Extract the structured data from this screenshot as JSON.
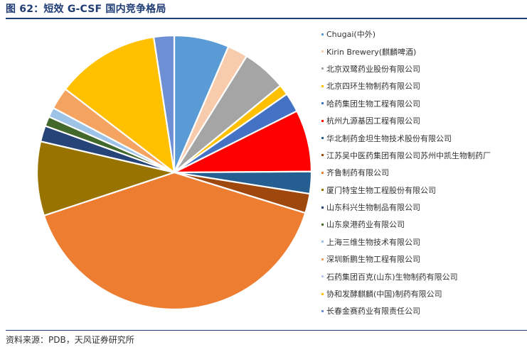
{
  "title": "图 62：短效 G-CSF 国内竞争格局",
  "source": "资料来源：PDB，天风证券研究所",
  "chart_data": {
    "type": "pie",
    "title": "",
    "legend_position": "right",
    "start_angle_deg": 0,
    "direction": "clockwise",
    "slices": [
      {
        "label": "Chugai(中外)",
        "value": 6.2,
        "color": "#5b9bd5"
      },
      {
        "label": "Kirin Brewery(麒麟啤酒)",
        "value": 2.3,
        "color": "#f8cbad"
      },
      {
        "label": "北京双鹭药业股份有限公司",
        "value": 5.0,
        "color": "#a5a5a5"
      },
      {
        "label": "北京四环生物制药有限公司",
        "value": 1.2,
        "color": "#ffc000"
      },
      {
        "label": "哈药集团生物工程有限公司",
        "value": 2.2,
        "color": "#4472c4"
      },
      {
        "label": "杭州九源基因工程有限公司",
        "value": 7.0,
        "color": "#ff0000"
      },
      {
        "label": "华北制药金坦生物技术股份有限公司",
        "value": 2.5,
        "color": "#255e91"
      },
      {
        "label": "江苏吴中医药集团有限公司苏州中凯生物制药厂",
        "value": 2.2,
        "color": "#9e480e"
      },
      {
        "label": "齐鲁制药有限公司",
        "value": 38.5,
        "color": "#ed7d31"
      },
      {
        "label": "厦门特宝生物工程股份有限公司",
        "value": 8.4,
        "color": "#997300"
      },
      {
        "label": "山东科兴生物制品有限公司",
        "value": 1.8,
        "color": "#264478"
      },
      {
        "label": "山东泉港药业有限公司",
        "value": 1.1,
        "color": "#43682b"
      },
      {
        "label": "上海三维生物技术有限公司",
        "value": 1.1,
        "color": "#9dc3e6"
      },
      {
        "label": "深圳新鹏生物工程有限公司",
        "value": 2.5,
        "color": "#f4a460"
      },
      {
        "label": "石药集团百克(山东)生物制药有限公司",
        "value": 0.0,
        "color": "#b4c7e7"
      },
      {
        "label": "协和发酵麒麟(中国)制药有限公司",
        "value": 11.7,
        "color": "#ffc000"
      },
      {
        "label": "长春金赛药业有限责任公司",
        "value": 2.3,
        "color": "#6e8fd3"
      }
    ]
  }
}
